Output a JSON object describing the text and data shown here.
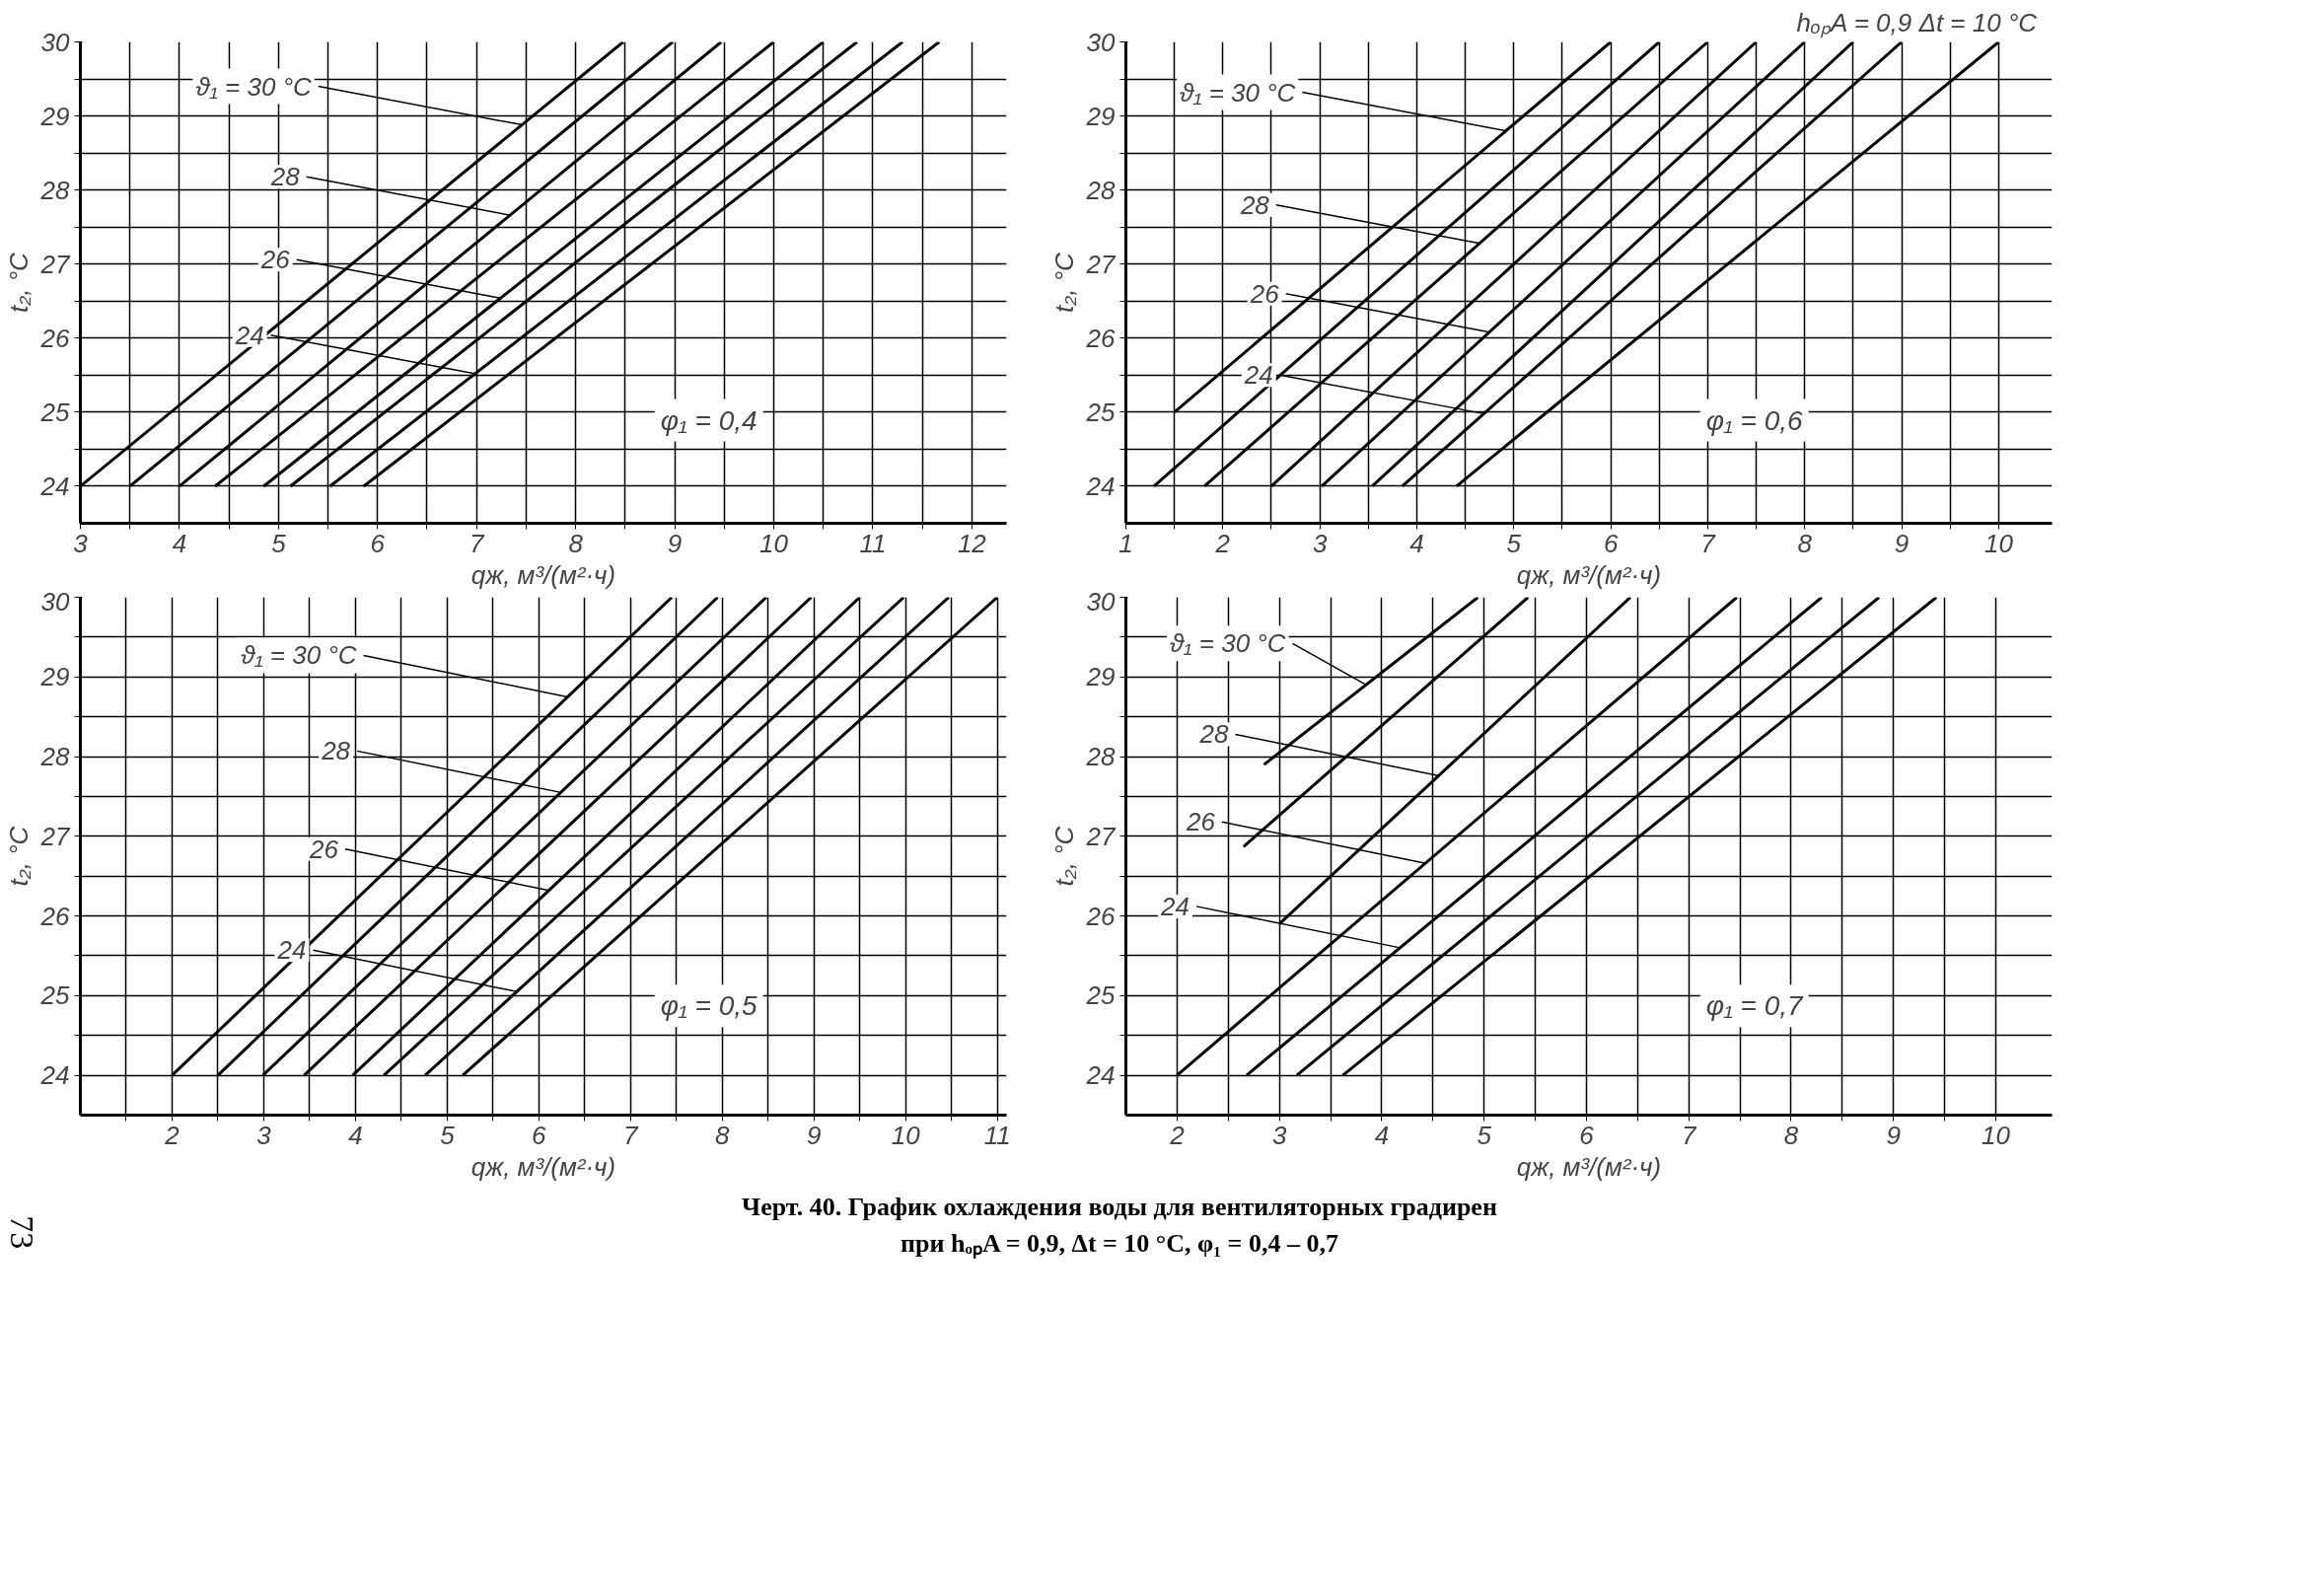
{
  "chart_data": [
    {
      "type": "line",
      "xlabel": "qж, м³/(м²·ч)",
      "ylabel": "t₂, °C",
      "xlim": [
        3,
        12.35
      ],
      "ylim": [
        23.5,
        30
      ],
      "grid": true,
      "marker": "none",
      "xticks": [
        3,
        {
          "value": 3.5,
          "label": null
        },
        4,
        {
          "value": 4.5,
          "label": null
        },
        5,
        {
          "value": 5.5,
          "label": null
        },
        6,
        {
          "value": 6.5,
          "label": null
        },
        7,
        {
          "value": 7.5,
          "label": null
        },
        8,
        {
          "value": 8.5,
          "label": null
        },
        9,
        {
          "value": 9.5,
          "label": null
        },
        10,
        {
          "value": 10.5,
          "label": null
        },
        11,
        {
          "value": 11.5,
          "label": null
        },
        12
      ],
      "yticks": [
        24,
        {
          "value": 24.5,
          "label": null
        },
        25,
        {
          "value": 25.5,
          "label": null
        },
        26,
        {
          "value": 26.5,
          "label": null
        },
        27,
        {
          "value": 27.5,
          "label": null
        },
        28,
        {
          "value": 28.5,
          "label": null
        },
        29,
        {
          "value": 29.5,
          "label": null
        },
        30
      ],
      "series": [
        {
          "color": "#000000",
          "x": [
            3.0,
            8.48
          ],
          "values": [
            24,
            30
          ]
        },
        {
          "color": "#000000",
          "x": [
            3.5,
            8.98
          ],
          "values": [
            24,
            30
          ]
        },
        {
          "color": "#000000",
          "x": [
            4.0,
            9.47
          ],
          "values": [
            24,
            30
          ]
        },
        {
          "color": "#000000",
          "x": [
            4.36,
            10.0
          ],
          "values": [
            24,
            30
          ]
        },
        {
          "color": "#000000",
          "x": [
            4.85,
            10.5
          ],
          "values": [
            24,
            30
          ]
        },
        {
          "color": "#000000",
          "x": [
            5.12,
            10.84
          ],
          "values": [
            24,
            30
          ]
        },
        {
          "color": "#000000",
          "x": [
            5.52,
            11.3
          ],
          "values": [
            24,
            30
          ]
        },
        {
          "color": "#000000",
          "x": [
            5.86,
            11.67
          ],
          "values": [
            24,
            30
          ]
        }
      ],
      "annotations": [
        "φ₁ = 0,4",
        {
          "text": "ϑ₁ = 30 °C",
          "x": 7.46,
          "y": 28.88
        },
        {
          "text": "28",
          "x": 7.34,
          "y": 27.66
        },
        {
          "text": "26",
          "x": 7.24,
          "y": 26.54
        },
        {
          "text": "24",
          "x": 6.98,
          "y": 25.52
        }
      ]
    },
    {
      "type": "line",
      "title": "hₒₚA = 0,9   Δt = 10 °C",
      "xlabel": "qж, м³/(м²·ч)",
      "ylabel": "t₂, °C",
      "xlim": [
        1,
        10.55
      ],
      "ylim": [
        23.5,
        30
      ],
      "grid": true,
      "marker": "none",
      "xticks": [
        1,
        {
          "value": 1.5,
          "label": null
        },
        2,
        {
          "value": 2.5,
          "label": null
        },
        3,
        {
          "value": 3.5,
          "label": null
        },
        4,
        {
          "value": 4.5,
          "label": null
        },
        5,
        {
          "value": 5.5,
          "label": null
        },
        6,
        {
          "value": 6.5,
          "label": null
        },
        7,
        {
          "value": 7.5,
          "label": null
        },
        8,
        {
          "value": 8.5,
          "label": null
        },
        9,
        {
          "value": 9.5,
          "label": null
        },
        10
      ],
      "yticks": [
        24,
        {
          "value": 24.5,
          "label": null
        },
        25,
        {
          "value": 25.5,
          "label": null
        },
        26,
        {
          "value": 26.5,
          "label": null
        },
        27,
        {
          "value": 27.5,
          "label": null
        },
        28,
        {
          "value": 28.5,
          "label": null
        },
        29,
        {
          "value": 29.5,
          "label": null
        },
        30
      ],
      "series": [
        {
          "color": "#000000",
          "x": [
            1.5,
            6.0
          ],
          "values": [
            25,
            30
          ]
        },
        {
          "color": "#000000",
          "x": [
            1.29,
            6.5
          ],
          "values": [
            24,
            30
          ]
        },
        {
          "color": "#000000",
          "x": [
            1.81,
            7.0
          ],
          "values": [
            24,
            30
          ]
        },
        {
          "color": "#000000",
          "x": [
            2.5,
            7.5
          ],
          "values": [
            24,
            30
          ]
        },
        {
          "color": "#000000",
          "x": [
            3.02,
            8.0
          ],
          "values": [
            24,
            30
          ]
        },
        {
          "color": "#000000",
          "x": [
            3.54,
            8.5
          ],
          "values": [
            24,
            30
          ]
        },
        {
          "color": "#000000",
          "x": [
            3.85,
            9.0
          ],
          "values": [
            24,
            30
          ]
        },
        {
          "color": "#000000",
          "x": [
            4.41,
            10.0
          ],
          "values": [
            24,
            30
          ]
        }
      ],
      "annotations": [
        "φ₁ = 0,6",
        {
          "text": "ϑ₁ = 30 °C",
          "x": 4.92,
          "y": 28.8
        },
        {
          "text": "28",
          "x": 4.65,
          "y": 27.28
        },
        {
          "text": "26",
          "x": 4.75,
          "y": 26.08
        },
        {
          "text": "24",
          "x": 4.69,
          "y": 24.98
        }
      ]
    },
    {
      "type": "line",
      "xlabel": "qж, м³/(м²·ч)",
      "ylabel": "t₂, °C",
      "xlim": [
        1,
        11.1
      ],
      "ylim": [
        23.5,
        30
      ],
      "grid": true,
      "marker": "none",
      "xticks": [
        {
          "value": 1.5,
          "label": null
        },
        2,
        {
          "value": 2.5,
          "label": null
        },
        3,
        {
          "value": 3.5,
          "label": null
        },
        4,
        {
          "value": 4.5,
          "label": null
        },
        5,
        {
          "value": 5.5,
          "label": null
        },
        6,
        {
          "value": 6.5,
          "label": null
        },
        7,
        {
          "value": 7.5,
          "label": null
        },
        8,
        {
          "value": 8.5,
          "label": null
        },
        9,
        {
          "value": 9.5,
          "label": null
        },
        10,
        {
          "value": 10.5,
          "label": null
        },
        11
      ],
      "yticks": [
        24,
        {
          "value": 24.5,
          "label": null
        },
        25,
        {
          "value": 25.5,
          "label": null
        },
        26,
        {
          "value": 26.5,
          "label": null
        },
        27,
        {
          "value": 27.5,
          "label": null
        },
        28,
        {
          "value": 28.5,
          "label": null
        },
        29,
        {
          "value": 29.5,
          "label": null
        },
        30
      ],
      "series": [
        {
          "color": "#000000",
          "x": [
            2.0,
            7.45
          ],
          "values": [
            24,
            30
          ]
        },
        {
          "color": "#000000",
          "x": [
            2.5,
            7.95
          ],
          "values": [
            24,
            30
          ]
        },
        {
          "color": "#000000",
          "x": [
            2.99,
            8.48
          ],
          "values": [
            24,
            30
          ]
        },
        {
          "color": "#000000",
          "x": [
            3.44,
            8.97
          ],
          "values": [
            24,
            30
          ]
        },
        {
          "color": "#000000",
          "x": [
            3.97,
            9.5
          ],
          "values": [
            24,
            30
          ]
        },
        {
          "color": "#000000",
          "x": [
            4.31,
            9.98
          ],
          "values": [
            24,
            30
          ]
        },
        {
          "color": "#000000",
          "x": [
            4.76,
            10.47
          ],
          "values": [
            24,
            30
          ]
        },
        {
          "color": "#000000",
          "x": [
            5.17,
            11.0
          ],
          "values": [
            24,
            30
          ]
        }
      ],
      "annotations": [
        "φ₁ = 0,5",
        {
          "text": "ϑ₁ = 30 °C",
          "x": 6.31,
          "y": 28.75
        },
        {
          "text": "28",
          "x": 6.24,
          "y": 27.55
        },
        {
          "text": "26",
          "x": 6.11,
          "y": 26.32
        },
        {
          "text": "24",
          "x": 5.76,
          "y": 25.05
        }
      ]
    },
    {
      "type": "line",
      "xlabel": "qж, м³/(м²·ч)",
      "ylabel": "t₂, °C",
      "xlim": [
        1.5,
        10.55
      ],
      "ylim": [
        23.5,
        30
      ],
      "grid": true,
      "marker": "none",
      "xticks": [
        2,
        {
          "value": 2.5,
          "label": null
        },
        3,
        {
          "value": 3.5,
          "label": null
        },
        4,
        {
          "value": 4.5,
          "label": null
        },
        5,
        {
          "value": 5.5,
          "label": null
        },
        6,
        {
          "value": 6.5,
          "label": null
        },
        7,
        {
          "value": 7.5,
          "label": null
        },
        8,
        {
          "value": 8.5,
          "label": null
        },
        9,
        {
          "value": 9.5,
          "label": null
        },
        10
      ],
      "yticks": [
        24,
        {
          "value": 24.5,
          "label": null
        },
        25,
        {
          "value": 25.5,
          "label": null
        },
        26,
        {
          "value": 26.5,
          "label": null
        },
        27,
        {
          "value": 27.5,
          "label": null
        },
        28,
        {
          "value": 28.5,
          "label": null
        },
        29,
        {
          "value": 29.5,
          "label": null
        },
        30
      ],
      "series": [
        {
          "color": "#000000",
          "x": [
            2.85,
            4.94
          ],
          "values": [
            27.9,
            30
          ]
        },
        {
          "color": "#000000",
          "x": [
            2.65,
            5.43
          ],
          "values": [
            26.87,
            30
          ]
        },
        {
          "color": "#000000",
          "x": [
            3.0,
            6.43
          ],
          "values": [
            25.9,
            30
          ]
        },
        {
          "color": "#000000",
          "x": [
            2.0,
            7.47
          ],
          "values": [
            24,
            30
          ]
        },
        {
          "color": "#000000",
          "x": [
            2.68,
            8.3
          ],
          "values": [
            24,
            30
          ]
        },
        {
          "color": "#000000",
          "x": [
            3.17,
            8.86
          ],
          "values": [
            24,
            30
          ]
        },
        {
          "color": "#000000",
          "x": [
            3.62,
            9.42
          ],
          "values": [
            24,
            30
          ]
        }
      ],
      "annotations": [
        "φ₁ = 0,7",
        {
          "text": "ϑ₁ = 30 °C",
          "x": 3.85,
          "y": 28.9
        },
        {
          "text": "28",
          "x": 4.56,
          "y": 27.76
        },
        {
          "text": "26",
          "x": 4.43,
          "y": 26.66
        },
        {
          "text": "24",
          "x": 4.18,
          "y": 25.6
        },
        "Черт. 40. График охлаждения воды для вентиляторных градирен",
        "при hₒₚA = 0,9, Δt = 10 °C, φ₁ = 0,4 – 0,7",
        "73"
      ]
    }
  ]
}
